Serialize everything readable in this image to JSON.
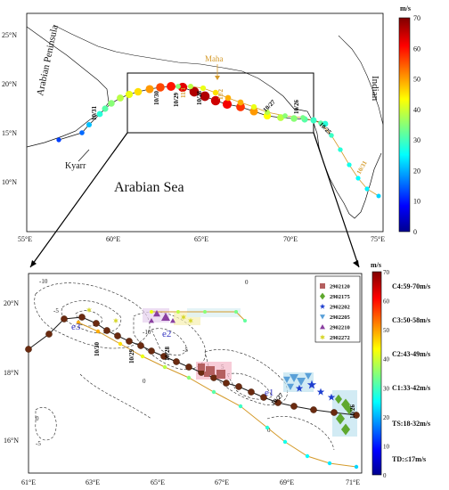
{
  "top_map": {
    "regions": {
      "arabian_peninsula": "Arabian Peninsula",
      "indian": "Indian",
      "sea": "Arabian Sea"
    },
    "storms": {
      "kyarr": "Kyarr",
      "maha": "Maha"
    },
    "lat_ticks": [
      "25°N",
      "20°N",
      "15°N",
      "10°N"
    ],
    "lon_ticks": [
      "55°E",
      "60°E",
      "65°E",
      "70°E",
      "75°E"
    ],
    "dates": [
      "10/31",
      "10/30",
      "10/29",
      "10/28",
      "10/27",
      "10/26",
      "10/25",
      "11/1",
      "11/2",
      "10/31"
    ]
  },
  "top_colorbar": {
    "unit": "m/s",
    "ticks": [
      "70",
      "60",
      "50",
      "40",
      "30",
      "20",
      "10",
      "0"
    ]
  },
  "bottom_map": {
    "lat_ticks": [
      "20°N",
      "18°N",
      "16°N"
    ],
    "lon_ticks": [
      "61°E",
      "63°E",
      "65°E",
      "67°E",
      "69°E",
      "71°E"
    ],
    "eddies": [
      "e3",
      "e2",
      "e1"
    ],
    "dates": [
      "10/30",
      "10/29",
      "10/28",
      "10/27",
      "10/26"
    ],
    "legend": [
      {
        "id": "2902120",
        "color": "#b45f5f",
        "shape": "square"
      },
      {
        "id": "2902175",
        "color": "#5fa82e",
        "shape": "diamond"
      },
      {
        "id": "2902202",
        "color": "#1f3fcf",
        "shape": "star"
      },
      {
        "id": "2902205",
        "color": "#5aa0d8",
        "shape": "triangle-down"
      },
      {
        "id": "2902210",
        "color": "#8a3fa0",
        "shape": "triangle-up"
      },
      {
        "id": "2902272",
        "color": "#d6d62a",
        "shape": "star6"
      }
    ]
  },
  "bottom_colorbar": {
    "unit": "m/s",
    "ticks": [
      "70",
      "60",
      "50",
      "40",
      "30",
      "20",
      "10",
      "0"
    ],
    "categories": [
      "C4:59-70m/s",
      "C3:50-58m/s",
      "C2:43-49m/s",
      "C1:33-42m/s",
      "TS:18-32m/s",
      "TD:≤17m/s"
    ]
  },
  "colors": {
    "maha_track": "#d49a2a",
    "kyarr_track": "#1a1a1a",
    "box": "#000000"
  }
}
